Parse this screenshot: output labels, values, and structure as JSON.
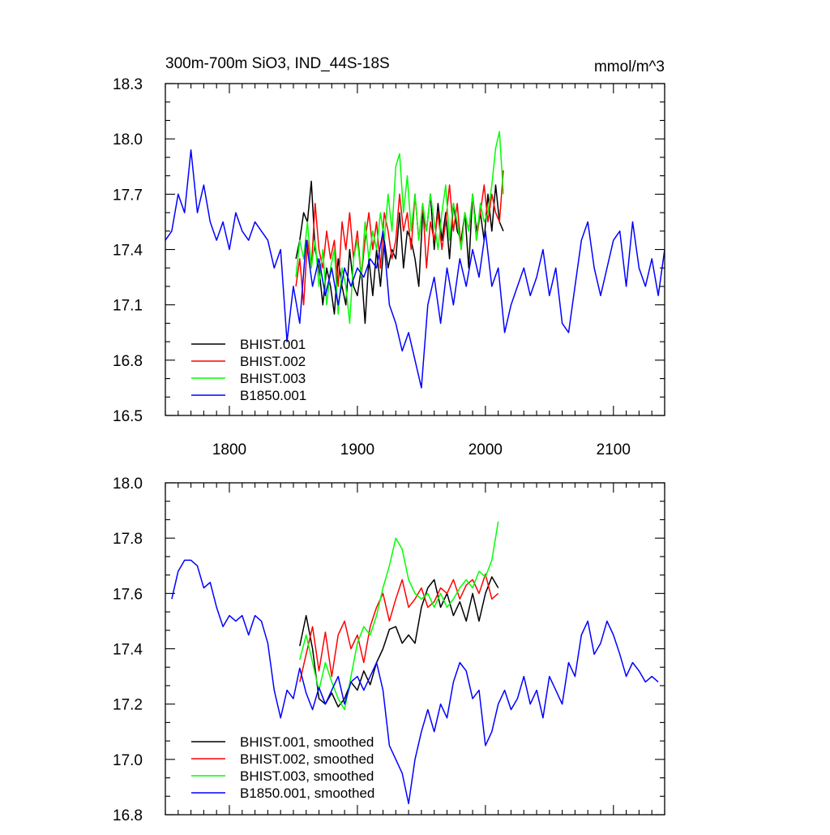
{
  "chart_data": [
    {
      "type": "line",
      "title": "300m-700m SiO3, IND_44S-18S",
      "units": "mmol/m^3",
      "xlim": [
        1750,
        2140
      ],
      "ylim": [
        16.5,
        18.3
      ],
      "xticks": [
        1800,
        1900,
        2000,
        2100
      ],
      "yticks": [
        16.5,
        16.8,
        17.1,
        17.4,
        17.7,
        18.0,
        18.3
      ],
      "ytick_labels": [
        "16.5",
        "16.8",
        "17.1",
        "17.4",
        "17.7",
        "18.0",
        "18.3"
      ],
      "legend_position": "bottom-left",
      "series": [
        {
          "name": "BHIST.001",
          "color": "#000000",
          "x": [
            1852,
            1855,
            1858,
            1861,
            1864,
            1867,
            1870,
            1873,
            1876,
            1879,
            1882,
            1885,
            1888,
            1891,
            1894,
            1897,
            1900,
            1903,
            1906,
            1909,
            1912,
            1915,
            1918,
            1921,
            1924,
            1927,
            1930,
            1933,
            1936,
            1939,
            1942,
            1945,
            1948,
            1951,
            1954,
            1957,
            1960,
            1963,
            1966,
            1969,
            1972,
            1975,
            1978,
            1981,
            1984,
            1987,
            1990,
            1993,
            1996,
            1999,
            2002,
            2005,
            2008,
            2011,
            2014
          ],
          "y": [
            17.35,
            17.45,
            17.6,
            17.55,
            17.77,
            17.4,
            17.3,
            17.1,
            17.3,
            17.2,
            17.05,
            17.35,
            17.2,
            17.1,
            17.4,
            17.2,
            17.15,
            17.3,
            17.0,
            17.35,
            17.15,
            17.4,
            17.2,
            17.45,
            17.3,
            17.4,
            17.35,
            17.6,
            17.3,
            17.5,
            17.45,
            17.35,
            17.2,
            17.6,
            17.5,
            17.7,
            17.4,
            17.65,
            17.45,
            17.6,
            17.35,
            17.65,
            17.5,
            17.45,
            17.6,
            17.3,
            17.7,
            17.5,
            17.6,
            17.45,
            17.7,
            17.5,
            17.75,
            17.55,
            17.5
          ]
        },
        {
          "name": "BHIST.002",
          "color": "#ff0000",
          "x": [
            1852,
            1855,
            1858,
            1861,
            1864,
            1867,
            1870,
            1873,
            1876,
            1879,
            1882,
            1885,
            1888,
            1891,
            1894,
            1897,
            1900,
            1903,
            1906,
            1909,
            1912,
            1915,
            1918,
            1921,
            1924,
            1927,
            1930,
            1933,
            1936,
            1939,
            1942,
            1945,
            1948,
            1951,
            1954,
            1957,
            1960,
            1963,
            1966,
            1969,
            1972,
            1975,
            1978,
            1981,
            1984,
            1987,
            1990,
            1993,
            1996,
            1999,
            2002,
            2005,
            2008,
            2011,
            2014
          ],
          "y": [
            17.2,
            17.35,
            17.1,
            17.45,
            17.3,
            17.65,
            17.4,
            17.3,
            17.5,
            17.35,
            17.45,
            17.2,
            17.55,
            17.4,
            17.6,
            17.35,
            17.5,
            17.25,
            17.45,
            17.6,
            17.4,
            17.55,
            17.3,
            17.6,
            17.5,
            17.35,
            17.45,
            17.7,
            17.5,
            17.6,
            17.4,
            17.7,
            17.45,
            17.65,
            17.3,
            17.55,
            17.45,
            17.6,
            17.4,
            17.55,
            17.75,
            17.5,
            17.65,
            17.4,
            17.6,
            17.5,
            17.7,
            17.45,
            17.6,
            17.75,
            17.55,
            17.7,
            17.6,
            17.55,
            17.83
          ]
        },
        {
          "name": "BHIST.003",
          "color": "#00ff00",
          "x": [
            1852,
            1855,
            1858,
            1861,
            1864,
            1867,
            1870,
            1873,
            1876,
            1879,
            1882,
            1885,
            1888,
            1891,
            1894,
            1897,
            1900,
            1903,
            1906,
            1909,
            1912,
            1915,
            1918,
            1921,
            1924,
            1927,
            1930,
            1933,
            1936,
            1939,
            1942,
            1945,
            1948,
            1951,
            1954,
            1957,
            1960,
            1963,
            1966,
            1969,
            1972,
            1975,
            1978,
            1981,
            1984,
            1987,
            1990,
            1993,
            1996,
            1999,
            2002,
            2005,
            2008,
            2011,
            2014
          ],
          "y": [
            17.25,
            17.45,
            17.35,
            17.55,
            17.3,
            17.45,
            17.2,
            17.4,
            17.1,
            17.3,
            17.4,
            17.05,
            17.3,
            17.2,
            17.0,
            17.35,
            17.45,
            17.25,
            17.55,
            17.35,
            17.5,
            17.4,
            17.6,
            17.45,
            17.7,
            17.5,
            17.85,
            17.92,
            17.6,
            17.8,
            17.5,
            17.7,
            17.45,
            17.65,
            17.5,
            17.7,
            17.55,
            17.4,
            17.6,
            17.75,
            17.45,
            17.65,
            17.55,
            17.4,
            17.6,
            17.5,
            17.7,
            17.45,
            17.65,
            17.55,
            17.6,
            17.75,
            17.95,
            18.04,
            17.7
          ]
        },
        {
          "name": "B1850.001",
          "color": "#0000ff",
          "x": [
            1750,
            1755,
            1760,
            1765,
            1770,
            1775,
            1780,
            1785,
            1790,
            1795,
            1800,
            1805,
            1810,
            1815,
            1820,
            1825,
            1830,
            1835,
            1840,
            1845,
            1850,
            1855,
            1860,
            1865,
            1870,
            1875,
            1880,
            1885,
            1890,
            1895,
            1900,
            1905,
            1910,
            1915,
            1920,
            1925,
            1930,
            1935,
            1940,
            1945,
            1950,
            1955,
            1960,
            1965,
            1970,
            1975,
            1980,
            1985,
            1990,
            1995,
            2000,
            2005,
            2010,
            2015,
            2020,
            2025,
            2030,
            2035,
            2040,
            2045,
            2050,
            2055,
            2060,
            2065,
            2070,
            2075,
            2080,
            2085,
            2090,
            2095,
            2100,
            2105,
            2110,
            2115,
            2120,
            2125,
            2130,
            2135,
            2140
          ],
          "y": [
            17.45,
            17.5,
            17.7,
            17.6,
            17.94,
            17.6,
            17.75,
            17.55,
            17.45,
            17.55,
            17.4,
            17.6,
            17.5,
            17.45,
            17.55,
            17.5,
            17.45,
            17.3,
            17.4,
            16.9,
            17.2,
            17.0,
            17.45,
            17.2,
            17.35,
            17.15,
            17.3,
            17.1,
            17.3,
            17.2,
            17.3,
            17.25,
            17.35,
            17.3,
            17.5,
            17.1,
            17.0,
            16.85,
            16.95,
            16.8,
            16.65,
            17.1,
            17.25,
            17.0,
            17.3,
            17.1,
            17.35,
            17.2,
            17.4,
            17.25,
            17.5,
            17.2,
            17.3,
            16.95,
            17.1,
            17.2,
            17.3,
            17.15,
            17.25,
            17.4,
            17.15,
            17.3,
            17.0,
            16.95,
            17.2,
            17.45,
            17.55,
            17.3,
            17.15,
            17.3,
            17.45,
            17.5,
            17.2,
            17.55,
            17.3,
            17.2,
            17.35,
            17.15,
            17.4
          ]
        }
      ]
    },
    {
      "type": "line",
      "xlim": [
        1750,
        2140
      ],
      "ylim": [
        16.8,
        18.0
      ],
      "xticks": [
        1800,
        1900,
        2000,
        2100
      ],
      "yticks": [
        16.8,
        17.0,
        17.2,
        17.4,
        17.6,
        17.8,
        18.0
      ],
      "ytick_labels": [
        "16.8",
        "17.0",
        "17.2",
        "17.4",
        "17.6",
        "17.8",
        "18.0"
      ],
      "legend_position": "bottom-left",
      "series": [
        {
          "name": "BHIST.001, smoothed",
          "color": "#000000",
          "x": [
            1855,
            1860,
            1865,
            1870,
            1875,
            1880,
            1885,
            1890,
            1895,
            1900,
            1905,
            1910,
            1915,
            1920,
            1925,
            1930,
            1935,
            1940,
            1945,
            1950,
            1955,
            1960,
            1965,
            1970,
            1975,
            1980,
            1985,
            1990,
            1995,
            2000,
            2005,
            2010
          ],
          "y": [
            17.41,
            17.52,
            17.4,
            17.22,
            17.2,
            17.24,
            17.19,
            17.22,
            17.28,
            17.25,
            17.32,
            17.27,
            17.35,
            17.4,
            17.47,
            17.48,
            17.42,
            17.45,
            17.42,
            17.55,
            17.62,
            17.65,
            17.55,
            17.6,
            17.52,
            17.57,
            17.5,
            17.6,
            17.5,
            17.6,
            17.66,
            17.62
          ]
        },
        {
          "name": "BHIST.002, smoothed",
          "color": "#ff0000",
          "x": [
            1855,
            1860,
            1865,
            1870,
            1875,
            1880,
            1885,
            1890,
            1895,
            1900,
            1905,
            1910,
            1915,
            1920,
            1925,
            1930,
            1935,
            1940,
            1945,
            1950,
            1955,
            1960,
            1965,
            1970,
            1975,
            1980,
            1985,
            1990,
            1995,
            2000,
            2005,
            2010
          ],
          "y": [
            17.28,
            17.38,
            17.48,
            17.32,
            17.46,
            17.3,
            17.45,
            17.5,
            17.4,
            17.45,
            17.35,
            17.48,
            17.55,
            17.6,
            17.5,
            17.58,
            17.65,
            17.55,
            17.58,
            17.62,
            17.55,
            17.57,
            17.62,
            17.6,
            17.65,
            17.58,
            17.63,
            17.65,
            17.6,
            17.67,
            17.58,
            17.6
          ]
        },
        {
          "name": "BHIST.003, smoothed",
          "color": "#00ff00",
          "x": [
            1855,
            1860,
            1865,
            1870,
            1875,
            1880,
            1885,
            1890,
            1895,
            1900,
            1905,
            1910,
            1915,
            1920,
            1925,
            1930,
            1935,
            1940,
            1945,
            1950,
            1955,
            1960,
            1965,
            1970,
            1975,
            1980,
            1985,
            1990,
            1995,
            2000,
            2005,
            2010
          ],
          "y": [
            17.36,
            17.45,
            17.35,
            17.25,
            17.35,
            17.28,
            17.22,
            17.18,
            17.3,
            17.42,
            17.48,
            17.45,
            17.52,
            17.62,
            17.7,
            17.8,
            17.76,
            17.65,
            17.6,
            17.58,
            17.6,
            17.55,
            17.6,
            17.55,
            17.58,
            17.62,
            17.65,
            17.62,
            17.68,
            17.66,
            17.72,
            17.86
          ]
        },
        {
          "name": "B1850.001, smoothed",
          "color": "#0000ff",
          "x": [
            1755,
            1760,
            1765,
            1770,
            1775,
            1780,
            1785,
            1790,
            1795,
            1800,
            1805,
            1810,
            1815,
            1820,
            1825,
            1830,
            1835,
            1840,
            1845,
            1850,
            1855,
            1860,
            1865,
            1870,
            1875,
            1880,
            1885,
            1890,
            1895,
            1900,
            1905,
            1910,
            1915,
            1920,
            1925,
            1930,
            1935,
            1940,
            1945,
            1950,
            1955,
            1960,
            1965,
            1970,
            1975,
            1980,
            1985,
            1990,
            1995,
            2000,
            2005,
            2010,
            2015,
            2020,
            2025,
            2030,
            2035,
            2040,
            2045,
            2050,
            2055,
            2060,
            2065,
            2070,
            2075,
            2080,
            2085,
            2090,
            2095,
            2100,
            2105,
            2110,
            2115,
            2120,
            2125,
            2130,
            2135
          ],
          "y": [
            17.58,
            17.68,
            17.72,
            17.72,
            17.7,
            17.62,
            17.64,
            17.55,
            17.48,
            17.52,
            17.5,
            17.52,
            17.45,
            17.52,
            17.5,
            17.42,
            17.25,
            17.15,
            17.25,
            17.22,
            17.33,
            17.24,
            17.18,
            17.26,
            17.2,
            17.25,
            17.3,
            17.2,
            17.28,
            17.3,
            17.25,
            17.3,
            17.35,
            17.25,
            17.05,
            17.0,
            16.95,
            16.84,
            17.0,
            17.1,
            17.18,
            17.1,
            17.2,
            17.15,
            17.28,
            17.35,
            17.32,
            17.22,
            17.25,
            17.05,
            17.1,
            17.2,
            17.25,
            17.18,
            17.22,
            17.3,
            17.2,
            17.25,
            17.15,
            17.3,
            17.25,
            17.2,
            17.35,
            17.3,
            17.45,
            17.5,
            17.38,
            17.42,
            17.5,
            17.45,
            17.38,
            17.3,
            17.35,
            17.32,
            17.28,
            17.3,
            17.28
          ]
        }
      ]
    }
  ]
}
